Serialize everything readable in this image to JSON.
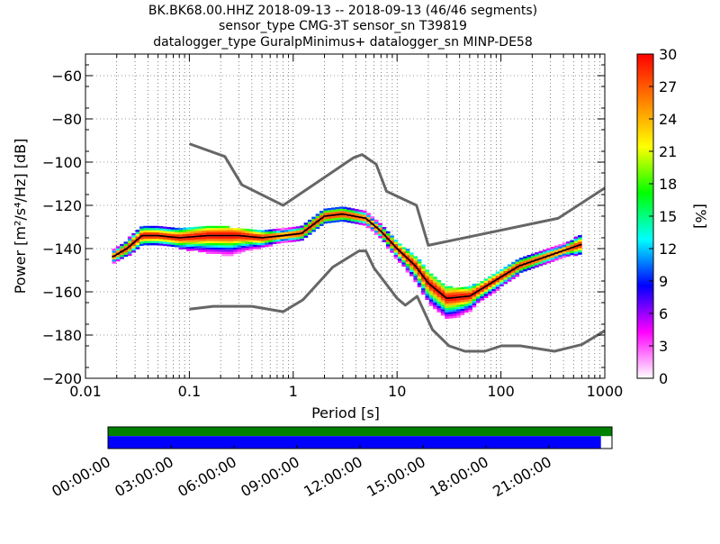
{
  "title_lines": [
    "BK.BK68.00.HHZ   2018-09-13 -- 2018-09-13  (46/46 segments)",
    "sensor_type CMG-3T sensor_sn T39819",
    "datalogger_type GuralpMinimus+ datalogger_sn MINP-DE58"
  ],
  "chart_data": [
    {
      "type": "heatmap",
      "xlabel": "Period [s]",
      "ylabel": "Power [m²/s⁴/Hz] [dB]",
      "x_scale": "log",
      "xlim": [
        0.01,
        1000
      ],
      "ylim": [
        -200,
        -50
      ],
      "x_ticks": [
        0.01,
        0.1,
        1,
        10,
        100,
        1000
      ],
      "x_tick_labels": [
        "0.01",
        "0.1",
        "1",
        "10",
        "100",
        "1000"
      ],
      "y_ticks": [
        -200,
        -180,
        -160,
        -140,
        -120,
        -100,
        -80,
        -60
      ],
      "y_tick_labels": [
        "−200",
        "−180",
        "−160",
        "−140",
        "−120",
        "−100",
        "−80",
        "−60"
      ],
      "grid": true,
      "colorbar": {
        "label": "[%]",
        "range": [
          0,
          30
        ],
        "ticks": [
          0,
          3,
          6,
          9,
          12,
          15,
          18,
          21,
          24,
          27,
          30
        ],
        "colors": [
          "#ffffff",
          "#ff00ff",
          "#0000ff",
          "#00ffff",
          "#00ff00",
          "#ffff00",
          "#ff8000",
          "#ff0000"
        ]
      },
      "mode_curve": [
        {
          "x": 0.018,
          "y": -144
        },
        {
          "x": 0.025,
          "y": -140
        },
        {
          "x": 0.035,
          "y": -134
        },
        {
          "x": 0.05,
          "y": -134
        },
        {
          "x": 0.08,
          "y": -135
        },
        {
          "x": 0.15,
          "y": -134
        },
        {
          "x": 0.3,
          "y": -134
        },
        {
          "x": 0.5,
          "y": -135
        },
        {
          "x": 0.8,
          "y": -134
        },
        {
          "x": 1.2,
          "y": -133
        },
        {
          "x": 2,
          "y": -125
        },
        {
          "x": 3,
          "y": -124
        },
        {
          "x": 5,
          "y": -126
        },
        {
          "x": 7,
          "y": -132
        },
        {
          "x": 10,
          "y": -140
        },
        {
          "x": 15,
          "y": -148
        },
        {
          "x": 20,
          "y": -156
        },
        {
          "x": 30,
          "y": -163
        },
        {
          "x": 50,
          "y": -162
        },
        {
          "x": 80,
          "y": -156
        },
        {
          "x": 150,
          "y": -148
        },
        {
          "x": 300,
          "y": -143
        },
        {
          "x": 600,
          "y": -138
        }
      ],
      "nhnm": [
        {
          "x": 0.1,
          "y": -91.5
        },
        {
          "x": 0.22,
          "y": -97.4
        },
        {
          "x": 0.32,
          "y": -110.5
        },
        {
          "x": 0.8,
          "y": -120
        },
        {
          "x": 3.8,
          "y": -98
        },
        {
          "x": 4.6,
          "y": -96.5
        },
        {
          "x": 6.3,
          "y": -101
        },
        {
          "x": 7.9,
          "y": -113.5
        },
        {
          "x": 15.4,
          "y": -120
        },
        {
          "x": 20,
          "y": -138.5
        },
        {
          "x": 354.8,
          "y": -126
        },
        {
          "x": 1000,
          "y": -112
        }
      ],
      "nlnm": [
        {
          "x": 0.1,
          "y": -168
        },
        {
          "x": 0.17,
          "y": -166.7
        },
        {
          "x": 0.4,
          "y": -166.7
        },
        {
          "x": 0.8,
          "y": -169.2
        },
        {
          "x": 1.24,
          "y": -163.7
        },
        {
          "x": 2.4,
          "y": -148.6
        },
        {
          "x": 4.3,
          "y": -141.1
        },
        {
          "x": 5,
          "y": -141.1
        },
        {
          "x": 6,
          "y": -149
        },
        {
          "x": 10,
          "y": -163
        },
        {
          "x": 12,
          "y": -166.2
        },
        {
          "x": 15.6,
          "y": -162.1
        },
        {
          "x": 21.9,
          "y": -177.5
        },
        {
          "x": 31.6,
          "y": -185
        },
        {
          "x": 45,
          "y": -187.5
        },
        {
          "x": 70,
          "y": -187.5
        },
        {
          "x": 101,
          "y": -185
        },
        {
          "x": 154,
          "y": -185
        },
        {
          "x": 328,
          "y": -187.5
        },
        {
          "x": 600,
          "y": -184.4
        },
        {
          "x": 1000,
          "y": -178
        }
      ],
      "density": [
        {
          "period": 0.018,
          "spread": [
            -2,
            2
          ]
        },
        {
          "period": 0.025,
          "spread": [
            -3,
            3
          ]
        },
        {
          "period": 0.035,
          "spread": [
            -4,
            4
          ]
        },
        {
          "period": 0.06,
          "spread": [
            -3,
            4
          ]
        },
        {
          "period": 0.15,
          "spread": [
            -7,
            4
          ]
        },
        {
          "period": 0.25,
          "spread": [
            -9,
            3
          ]
        },
        {
          "period": 0.4,
          "spread": [
            -5,
            3
          ]
        },
        {
          "period": 0.8,
          "spread": [
            -2,
            2
          ]
        },
        {
          "period": 1.5,
          "spread": [
            -3,
            3
          ]
        },
        {
          "period": 3,
          "spread": [
            -3,
            3
          ]
        },
        {
          "period": 6,
          "spread": [
            -2,
            2
          ]
        },
        {
          "period": 12,
          "spread": [
            -5,
            3
          ]
        },
        {
          "period": 20,
          "spread": [
            -8,
            5
          ]
        },
        {
          "period": 35,
          "spread": [
            -9,
            4
          ]
        },
        {
          "period": 60,
          "spread": [
            -5,
            3
          ]
        },
        {
          "period": 150,
          "spread": [
            -3,
            3
          ]
        },
        {
          "period": 400,
          "spread": [
            -2,
            2
          ]
        },
        {
          "period": 600,
          "spread": [
            -4,
            4
          ]
        }
      ]
    },
    {
      "type": "bar",
      "description_free": true,
      "x_tick_labels": [
        "00:00:00",
        "03:00:00",
        "06:00:00",
        "09:00:00",
        "12:00:00",
        "15:00:00",
        "18:00:00",
        "21:00:00"
      ],
      "coverage": [
        {
          "color": "#008000",
          "start_fraction": 0.0,
          "end_fraction": 1.0
        },
        {
          "color": "#0000ff",
          "start_fraction": 0.0,
          "end_fraction": 0.978
        }
      ]
    }
  ]
}
